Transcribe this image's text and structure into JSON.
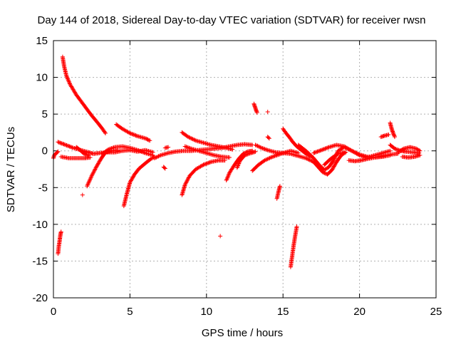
{
  "chart_data": {
    "type": "scatter",
    "title": "Day 144 of 2018, Sidereal Day-to-day VTEC variation (SDTVAR) for receiver rwsn",
    "xlabel": "GPS time / hours",
    "ylabel": "SDTVAR / TECUs",
    "xlim": [
      0,
      25
    ],
    "ylim": [
      -20,
      15
    ],
    "xticks": [
      "0",
      "5",
      "10",
      "15",
      "20",
      "25"
    ],
    "yticks": [
      "-20",
      "-15",
      "-10",
      "-5",
      "0",
      "5",
      "10",
      "15"
    ],
    "grid": true,
    "marker": "+",
    "color": "#ff0000",
    "tracks": [
      {
        "name": "track-1",
        "points": [
          [
            0.0,
            -1.0
          ],
          [
            0.05,
            -0.6
          ],
          [
            0.2,
            -0.3
          ],
          [
            0.3,
            -0.1
          ]
        ]
      },
      {
        "name": "track-2",
        "points": [
          [
            0.3,
            -14.0
          ],
          [
            0.35,
            -13.0
          ],
          [
            0.4,
            -12.3
          ],
          [
            0.45,
            -11.5
          ],
          [
            0.5,
            -11.0
          ]
        ]
      },
      {
        "name": "track-3",
        "points": [
          [
            0.6,
            12.8
          ],
          [
            0.7,
            11.5
          ],
          [
            0.85,
            10.2
          ],
          [
            1.1,
            9.0
          ],
          [
            1.5,
            7.6
          ],
          [
            2.0,
            6.2
          ],
          [
            2.5,
            4.8
          ],
          [
            2.9,
            3.8
          ],
          [
            3.2,
            3.0
          ],
          [
            3.4,
            2.4
          ]
        ]
      },
      {
        "name": "track-4",
        "points": [
          [
            0.3,
            1.2
          ],
          [
            0.8,
            0.8
          ],
          [
            1.3,
            0.4
          ],
          [
            1.8,
            0.1
          ],
          [
            2.3,
            -0.2
          ],
          [
            2.6,
            -0.4
          ],
          [
            3.0,
            -0.3
          ],
          [
            3.5,
            -0.2
          ],
          [
            4.0,
            -0.2
          ],
          [
            4.5,
            0.0
          ],
          [
            5.0,
            0.1
          ],
          [
            5.5,
            -0.1
          ],
          [
            6.0,
            0.1
          ],
          [
            6.5,
            -0.2
          ]
        ]
      },
      {
        "name": "track-5",
        "points": [
          [
            0.5,
            -0.8
          ],
          [
            1.0,
            -1.0
          ],
          [
            1.5,
            -1.0
          ],
          [
            2.0,
            -1.0
          ],
          [
            2.4,
            -0.9
          ]
        ]
      },
      {
        "name": "track-6",
        "points": [
          [
            1.5,
            0.5
          ],
          [
            1.8,
            0.0
          ],
          [
            2.0,
            -0.4
          ],
          [
            2.3,
            -0.6
          ]
        ]
      },
      {
        "name": "track-7",
        "points": [
          [
            1.9,
            -6.0
          ]
        ]
      },
      {
        "name": "track-8",
        "points": [
          [
            2.2,
            -4.8
          ],
          [
            2.5,
            -3.4
          ],
          [
            2.8,
            -2.2
          ],
          [
            3.1,
            -1.1
          ],
          [
            3.4,
            -0.2
          ],
          [
            3.8,
            0.0
          ],
          [
            4.2,
            0.1
          ]
        ]
      },
      {
        "name": "track-9",
        "points": [
          [
            4.1,
            3.6
          ],
          [
            4.5,
            3.0
          ],
          [
            5.0,
            2.4
          ],
          [
            5.5,
            2.0
          ],
          [
            6.0,
            1.7
          ],
          [
            6.3,
            1.4
          ]
        ]
      },
      {
        "name": "track-10",
        "points": [
          [
            4.6,
            -7.5
          ],
          [
            4.8,
            -5.8
          ],
          [
            5.0,
            -4.3
          ],
          [
            5.3,
            -3.2
          ],
          [
            5.6,
            -2.4
          ],
          [
            6.0,
            -1.7
          ],
          [
            6.3,
            -1.2
          ],
          [
            6.6,
            -0.8
          ]
        ]
      },
      {
        "name": "track-11",
        "points": [
          [
            3.2,
            -0.4
          ],
          [
            3.6,
            0.2
          ],
          [
            4.0,
            0.5
          ],
          [
            4.5,
            0.6
          ],
          [
            5.0,
            0.4
          ],
          [
            5.5,
            0.1
          ],
          [
            6.0,
            -0.3
          ],
          [
            6.5,
            -0.6
          ]
        ]
      },
      {
        "name": "track-12",
        "points": [
          [
            6.6,
            -1.0
          ],
          [
            7.0,
            -0.6
          ],
          [
            7.5,
            -0.3
          ],
          [
            8.0,
            -0.1
          ],
          [
            8.5,
            0.0
          ],
          [
            9.0,
            0.0
          ],
          [
            9.5,
            0.1
          ],
          [
            10.0,
            0.2
          ],
          [
            10.5,
            0.3
          ],
          [
            11.0,
            0.4
          ],
          [
            11.5,
            0.6
          ],
          [
            12.0,
            0.8
          ],
          [
            12.5,
            0.9
          ],
          [
            13.0,
            0.8
          ]
        ]
      },
      {
        "name": "track-13",
        "points": [
          [
            7.3,
            0.4
          ],
          [
            7.5,
            0.5
          ]
        ]
      },
      {
        "name": "track-14",
        "points": [
          [
            7.2,
            -2.2
          ],
          [
            7.3,
            -2.4
          ]
        ]
      },
      {
        "name": "track-15",
        "points": [
          [
            8.4,
            2.5
          ],
          [
            8.8,
            1.9
          ],
          [
            9.3,
            1.4
          ],
          [
            9.8,
            1.1
          ],
          [
            10.3,
            0.8
          ],
          [
            10.8,
            0.6
          ],
          [
            11.3,
            0.4
          ],
          [
            11.7,
            0.2
          ]
        ]
      },
      {
        "name": "track-16",
        "points": [
          [
            8.4,
            -6.0
          ],
          [
            8.6,
            -4.6
          ],
          [
            8.9,
            -3.4
          ],
          [
            9.3,
            -2.5
          ],
          [
            9.8,
            -1.9
          ],
          [
            10.3,
            -1.5
          ],
          [
            10.8,
            -1.3
          ],
          [
            11.2,
            -1.3
          ]
        ]
      },
      {
        "name": "track-17",
        "points": [
          [
            8.6,
            0.6
          ],
          [
            9.0,
            0.3
          ],
          [
            9.5,
            0.0
          ],
          [
            10.0,
            -0.3
          ],
          [
            10.5,
            -0.6
          ],
          [
            11.0,
            -0.8
          ],
          [
            11.5,
            -0.9
          ]
        ]
      },
      {
        "name": "track-18",
        "points": [
          [
            10.9,
            -11.6
          ]
        ]
      },
      {
        "name": "track-19",
        "points": [
          [
            11.3,
            -4.0
          ],
          [
            11.5,
            -3.0
          ],
          [
            11.8,
            -2.0
          ],
          [
            12.1,
            -1.1
          ],
          [
            12.4,
            -0.4
          ],
          [
            12.7,
            -0.1
          ],
          [
            13.0,
            0.0
          ]
        ]
      },
      {
        "name": "track-20",
        "points": [
          [
            12.0,
            -2.3
          ],
          [
            12.2,
            -1.3
          ],
          [
            12.5,
            -0.6
          ],
          [
            12.9,
            -0.3
          ],
          [
            13.2,
            -0.1
          ]
        ]
      },
      {
        "name": "track-21",
        "points": [
          [
            13.1,
            6.4
          ],
          [
            13.2,
            5.8
          ],
          [
            13.3,
            5.2
          ]
        ]
      },
      {
        "name": "track-22",
        "points": [
          [
            14.0,
            5.3
          ]
        ]
      },
      {
        "name": "track-23",
        "points": [
          [
            14.0,
            1.9
          ],
          [
            14.1,
            1.7
          ]
        ]
      },
      {
        "name": "track-24",
        "points": [
          [
            13.2,
            0.8
          ],
          [
            13.6,
            0.4
          ],
          [
            14.0,
            0.1
          ],
          [
            14.5,
            -0.2
          ],
          [
            15.0,
            -0.3
          ],
          [
            15.5,
            -0.4
          ],
          [
            16.0,
            -0.7
          ],
          [
            16.5,
            -1.0
          ],
          [
            17.0,
            -1.5
          ],
          [
            17.3,
            -2.2
          ],
          [
            17.6,
            -2.9
          ],
          [
            17.9,
            -3.2
          ],
          [
            18.2,
            -2.6
          ],
          [
            18.5,
            -1.5
          ],
          [
            18.8,
            -0.6
          ],
          [
            19.1,
            -0.2
          ]
        ]
      },
      {
        "name": "track-25",
        "points": [
          [
            13.0,
            -2.7
          ],
          [
            13.4,
            -1.9
          ],
          [
            13.8,
            -1.3
          ],
          [
            14.2,
            -0.9
          ],
          [
            14.6,
            -0.6
          ],
          [
            15.0,
            -0.3
          ],
          [
            15.5,
            0.0
          ],
          [
            16.0,
            -0.3
          ]
        ]
      },
      {
        "name": "track-26",
        "points": [
          [
            14.6,
            -6.5
          ],
          [
            14.7,
            -5.6
          ],
          [
            14.8,
            -4.8
          ]
        ]
      },
      {
        "name": "track-27",
        "points": [
          [
            15.0,
            3.0
          ],
          [
            15.2,
            2.4
          ],
          [
            15.4,
            1.9
          ],
          [
            15.6,
            1.3
          ],
          [
            15.9,
            0.6
          ],
          [
            16.2,
            0.1
          ],
          [
            16.5,
            -0.4
          ],
          [
            16.8,
            -0.8
          ]
        ]
      },
      {
        "name": "track-28",
        "points": [
          [
            15.5,
            -15.8
          ],
          [
            15.6,
            -14.3
          ],
          [
            15.7,
            -12.8
          ],
          [
            15.8,
            -11.5
          ],
          [
            15.9,
            -10.3
          ]
        ]
      },
      {
        "name": "track-29",
        "points": [
          [
            16.0,
            0.8
          ],
          [
            16.5,
            0.0
          ],
          [
            17.0,
            -1.0
          ],
          [
            17.4,
            -2.0
          ],
          [
            17.7,
            -2.6
          ],
          [
            18.0,
            -2.2
          ],
          [
            18.3,
            -1.3
          ],
          [
            18.6,
            0.0
          ],
          [
            19.0,
            0.5
          ],
          [
            19.5,
            0.0
          ],
          [
            20.0,
            -0.6
          ],
          [
            20.5,
            -0.9
          ],
          [
            21.0,
            -0.6
          ],
          [
            21.5,
            -0.3
          ],
          [
            22.0,
            0.0
          ]
        ]
      },
      {
        "name": "track-30",
        "points": [
          [
            17.0,
            -0.3
          ],
          [
            17.5,
            0.1
          ],
          [
            18.0,
            0.5
          ],
          [
            18.5,
            0.8
          ],
          [
            19.0,
            0.6
          ],
          [
            19.5,
            0.0
          ],
          [
            20.0,
            -0.5
          ],
          [
            20.5,
            -0.8
          ],
          [
            21.0,
            -0.9
          ],
          [
            21.5,
            -0.8
          ],
          [
            22.0,
            -0.6
          ]
        ]
      },
      {
        "name": "track-31",
        "points": [
          [
            17.7,
            -1.9
          ],
          [
            18.0,
            -1.3
          ],
          [
            18.3,
            -0.8
          ],
          [
            18.6,
            -0.4
          ],
          [
            19.0,
            -0.2
          ]
        ]
      },
      {
        "name": "track-32",
        "points": [
          [
            19.3,
            -1.3
          ],
          [
            19.7,
            -1.4
          ],
          [
            20.1,
            -1.3
          ],
          [
            20.5,
            -1.1
          ],
          [
            21.0,
            -0.9
          ],
          [
            21.5,
            -0.7
          ],
          [
            22.0,
            -0.5
          ],
          [
            22.5,
            -0.4
          ]
        ]
      },
      {
        "name": "track-33",
        "points": [
          [
            21.4,
            1.9
          ],
          [
            21.7,
            2.1
          ],
          [
            21.9,
            2.2
          ]
        ]
      },
      {
        "name": "track-34",
        "points": [
          [
            22.0,
            3.8
          ],
          [
            22.1,
            3.0
          ],
          [
            22.2,
            2.4
          ],
          [
            22.3,
            1.9
          ]
        ]
      },
      {
        "name": "track-35",
        "points": [
          [
            22.0,
            0.8
          ],
          [
            22.3,
            0.3
          ],
          [
            22.7,
            0.0
          ],
          [
            23.0,
            -0.1
          ],
          [
            23.5,
            -0.2
          ],
          [
            23.9,
            -0.3
          ]
        ]
      },
      {
        "name": "track-36",
        "points": [
          [
            22.5,
            -0.2
          ],
          [
            22.9,
            0.3
          ],
          [
            23.3,
            0.5
          ],
          [
            23.7,
            0.3
          ],
          [
            23.95,
            0.0
          ]
        ]
      },
      {
        "name": "track-37",
        "points": [
          [
            22.8,
            -0.8
          ],
          [
            23.2,
            -0.9
          ],
          [
            23.6,
            -0.8
          ],
          [
            23.95,
            -0.6
          ]
        ]
      }
    ]
  }
}
